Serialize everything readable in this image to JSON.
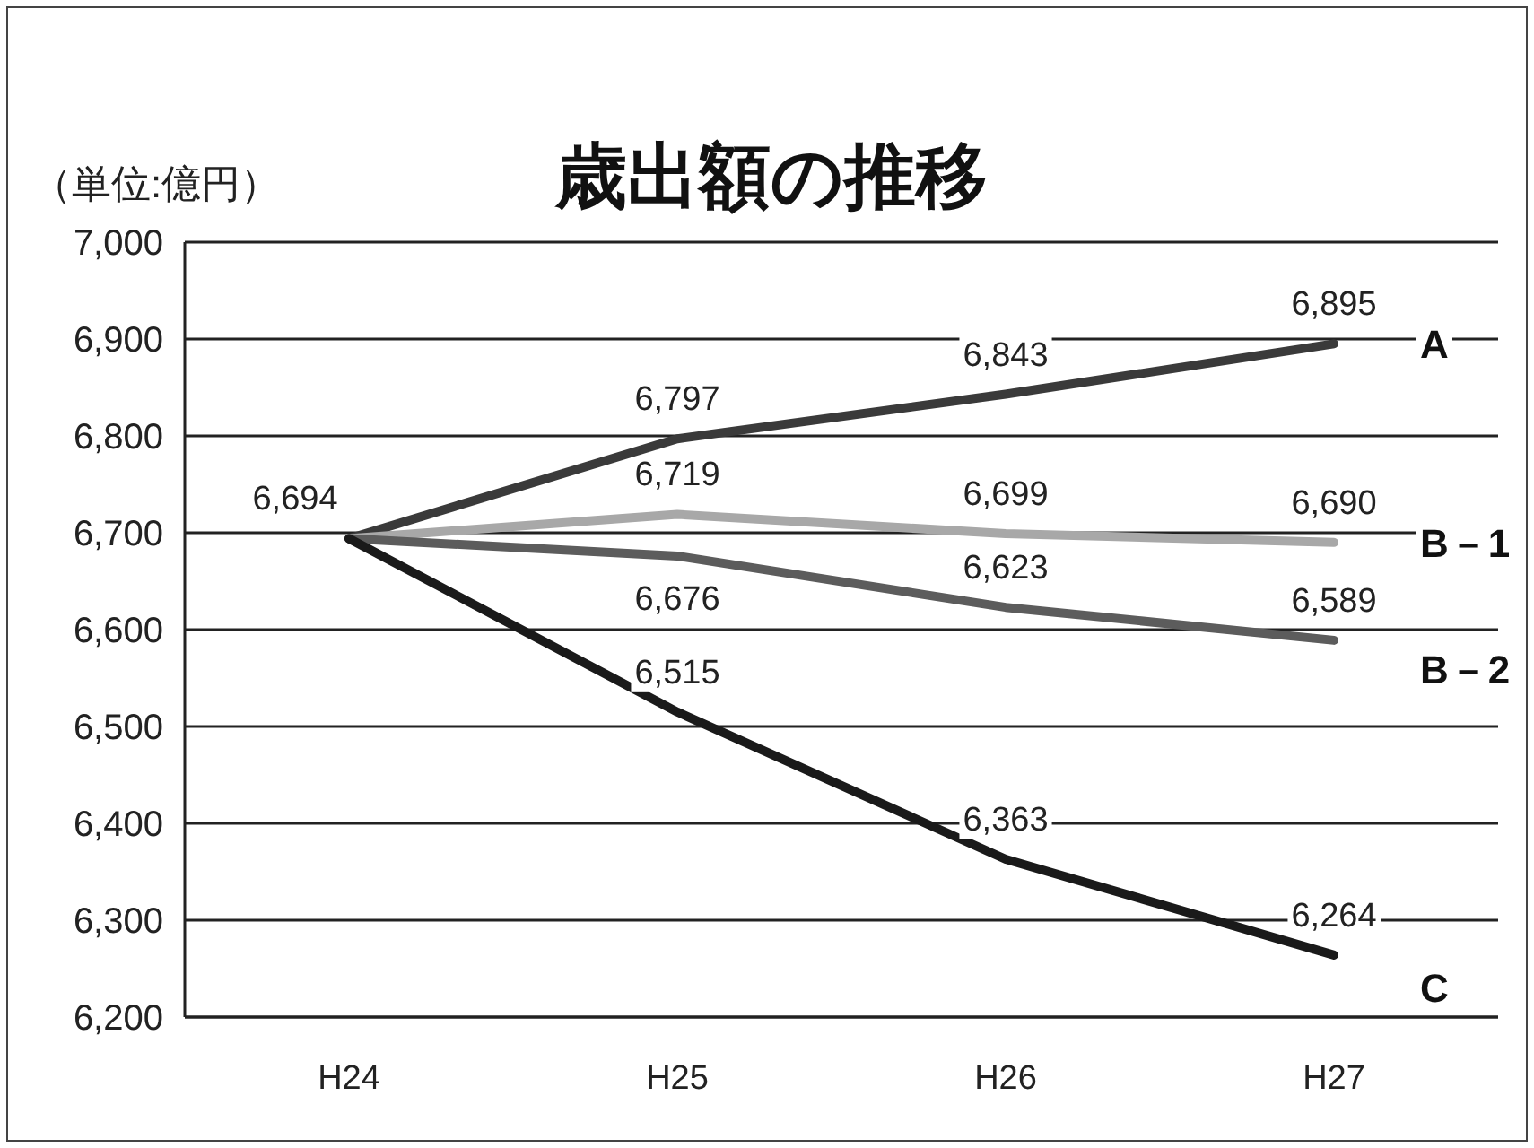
{
  "chart_data": {
    "type": "line",
    "title": "歳出額の推移",
    "annotations": [
      "（単位:億円）"
    ],
    "categories": [
      "H24",
      "H25",
      "H26",
      "H27"
    ],
    "series": [
      {
        "name": "A",
        "color": "#3a3a3a",
        "values": [
          6694,
          6797,
          6843,
          6895
        ],
        "value_labels": [
          "6,694",
          "6,797",
          "6,843",
          "6,895"
        ]
      },
      {
        "name": "B－1",
        "color": "#a8a8a8",
        "values": [
          6694,
          6719,
          6699,
          6690
        ],
        "value_labels": [
          null,
          "6,719",
          "6,699",
          "6,690"
        ]
      },
      {
        "name": "B－2",
        "color": "#5c5c5c",
        "values": [
          6694,
          6676,
          6623,
          6589
        ],
        "value_labels": [
          null,
          "6,676",
          "6,623",
          "6,589"
        ]
      },
      {
        "name": "C",
        "color": "#1a1a1a",
        "values": [
          6694,
          6515,
          6363,
          6264
        ],
        "value_labels": [
          null,
          "6,515",
          "6,363",
          "6,264"
        ]
      }
    ],
    "ylim": [
      6200,
      7000
    ],
    "yticks": [
      {
        "value": 6200,
        "label": "6,200"
      },
      {
        "value": 6300,
        "label": "6,300"
      },
      {
        "value": 6400,
        "label": "6,400"
      },
      {
        "value": 6500,
        "label": "6,500"
      },
      {
        "value": 6600,
        "label": "6,600"
      },
      {
        "value": 6700,
        "label": "6,700"
      },
      {
        "value": 6800,
        "label": "6,800"
      },
      {
        "value": 6900,
        "label": "6,900"
      },
      {
        "value": 7000,
        "label": "7,000"
      }
    ],
    "grid": "y",
    "legend": false,
    "marker": "none",
    "line_style": "solid"
  }
}
